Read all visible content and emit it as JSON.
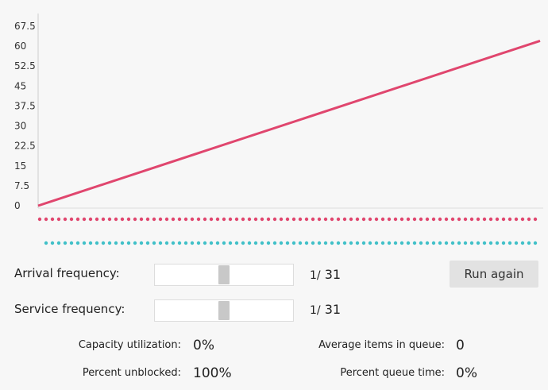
{
  "chart_data": {
    "type": "line",
    "y_ticks": [
      "0",
      "7.5",
      "15",
      "22.5",
      "30",
      "37.5",
      "45",
      "52.5",
      "60",
      "67.5"
    ],
    "ylim": [
      0,
      67.5
    ],
    "series": [
      {
        "color": "#e0466e",
        "x": [
          0,
          100
        ],
        "values": [
          0,
          62
        ]
      }
    ],
    "dotted_tracks": [
      {
        "color": "#e0466e"
      },
      {
        "color": "#40c0c8"
      }
    ]
  },
  "controls": {
    "arrival_label": "Arrival frequency:",
    "arrival_prefix": "1/",
    "arrival_value": "31",
    "arrival_slider_fraction": 0.5,
    "service_label": "Service frequency:",
    "service_prefix": "1/",
    "service_value": "31",
    "service_slider_fraction": 0.5,
    "run_button": "Run again"
  },
  "stats": {
    "capacity_label": "Capacity utilization:",
    "capacity_value": "0%",
    "unblocked_label": "Percent unblocked:",
    "unblocked_value": "100%",
    "avg_items_label": "Average items in queue:",
    "avg_items_value": "0",
    "queue_time_label": "Percent queue time:",
    "queue_time_value": "0%"
  }
}
